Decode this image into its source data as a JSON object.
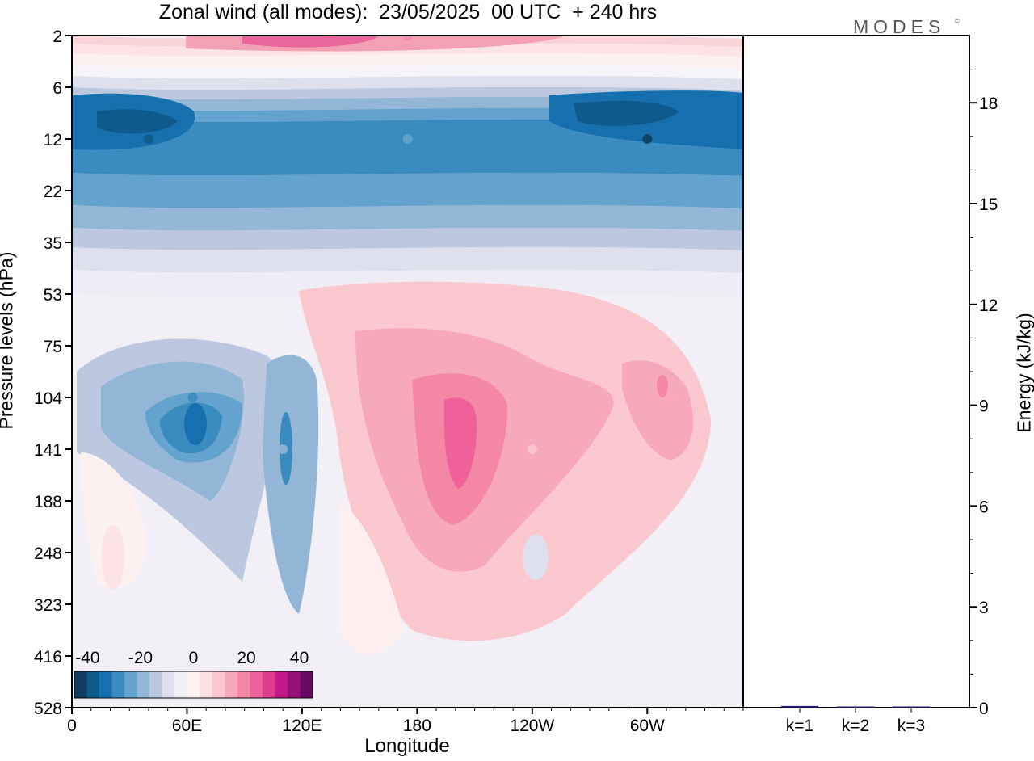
{
  "title": "Zonal wind (all modes):  23/05/2025  00 UTC  + 240 hrs",
  "brand": "MODES",
  "brand_mark": "©",
  "colors": {
    "bin_colors": [
      "#103e61",
      "#0e5a8c",
      "#1670ad",
      "#3a8cc0",
      "#64a3cd",
      "#94b6d6",
      "#bcc8e0",
      "#dfe0ee",
      "#f2eff6",
      "#fdf3f3",
      "#fde0e0",
      "#fbc9cd",
      "#f8a9b8",
      "#f487a5",
      "#ef6198",
      "#e03c8f",
      "#c21a86",
      "#98107a",
      "#6a0a66"
    ]
  },
  "chart_data": [
    {
      "type": "heatmap",
      "title": "Zonal wind (all modes):  23/05/2025  00 UTC  + 240 hrs",
      "xlabel": "Longitude",
      "ylabel": "Pressure levels (hPa)",
      "x_ticks": [
        {
          "lon": 0,
          "label": "0"
        },
        {
          "lon": 60,
          "label": "60E"
        },
        {
          "lon": 120,
          "label": "120E"
        },
        {
          "lon": 180,
          "label": "180"
        },
        {
          "lon": 240,
          "label": "120W"
        },
        {
          "lon": 300,
          "label": "60W"
        }
      ],
      "xlim": [
        0,
        350
      ],
      "y_levels": [
        "2",
        "6",
        "12",
        "22",
        "35",
        "53",
        "75",
        "104",
        "141",
        "188",
        "248",
        "323",
        "416",
        "528"
      ],
      "y_order": "top-to-bottom",
      "colorbar": {
        "bins": 19,
        "min": -45,
        "max": 45,
        "labels": [
          "-40",
          "-20",
          "0",
          "20",
          "40"
        ],
        "label_values": [
          -40,
          -20,
          0,
          20,
          40
        ]
      },
      "features": [
        {
          "lon": 40,
          "level": "12",
          "value": -40
        },
        {
          "lon": 300,
          "level": "12",
          "value": -42
        },
        {
          "lon": 175,
          "level": "12",
          "value": -25
        },
        {
          "lon": 175,
          "level": "2",
          "value": 20
        },
        {
          "lon": 135,
          "level": "2",
          "value": 25
        },
        {
          "lon": 63,
          "level": "104",
          "value": -30
        },
        {
          "lon": 110,
          "level": "141",
          "value": -18
        },
        {
          "lon": 200,
          "level": "141",
          "value": 25
        },
        {
          "lon": 312,
          "level": "104",
          "value": 15
        },
        {
          "lon": 240,
          "level": "141",
          "value": 8
        }
      ]
    },
    {
      "type": "bar",
      "categories": [
        "k=1",
        "k=2",
        "k=3"
      ],
      "values": [
        0.05,
        0.02,
        0.01
      ],
      "ylabel": "Energy (kJ/kg)",
      "ylim": [
        0,
        20
      ],
      "y_ticks": [
        0,
        3,
        6,
        9,
        12,
        15,
        18
      ]
    }
  ]
}
